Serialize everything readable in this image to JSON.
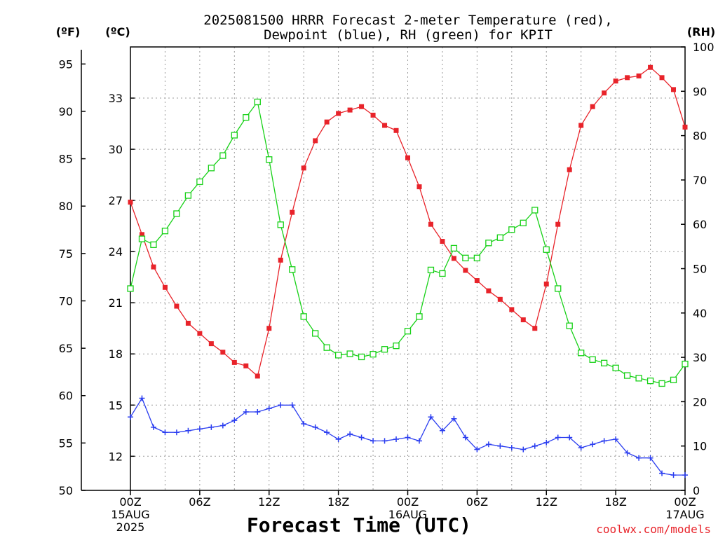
{
  "title_line1": "2025081500 HRRR Forecast 2-meter Temperature (red),",
  "title_line2": "Dewpoint (blue), RH (green) for KPIT",
  "unit_f": "(ºF)",
  "unit_c": "(ºC)",
  "unit_rh": "(RH)",
  "xlabel": "Forecast Time (UTC)",
  "credit": "coolwx.com/models",
  "x_date_labels": [
    {
      "lines": [
        "00Z",
        "15AUG",
        "2025"
      ],
      "hour": 0
    },
    {
      "lines": [
        "00Z",
        "16AUG"
      ],
      "hour": 24
    },
    {
      "lines": [
        "00Z",
        "17AUG"
      ],
      "hour": 48
    }
  ],
  "x_hour_labels": [
    {
      "label": "06Z",
      "hour": 6
    },
    {
      "label": "12Z",
      "hour": 12
    },
    {
      "label": "18Z",
      "hour": 18
    },
    {
      "label": "06Z",
      "hour": 30
    },
    {
      "label": "12Z",
      "hour": 36
    },
    {
      "label": "18Z",
      "hour": 42
    }
  ],
  "colors": {
    "temperature": "#e8232a",
    "dewpoint": "#2a3df0",
    "rh": "#17d117",
    "grid": "#9a9a9a"
  },
  "chart_data": {
    "type": "line",
    "x_unit": "forecast hour from 2025-08-15 00Z",
    "xlim": [
      0,
      48
    ],
    "y_left_f": {
      "ticks": [
        50,
        55,
        60,
        65,
        70,
        75,
        80,
        85,
        90,
        95
      ]
    },
    "y_left_c": {
      "ticks": [
        12,
        15,
        18,
        21,
        24,
        27,
        30,
        33
      ],
      "ylim": [
        10.0,
        36.0
      ]
    },
    "y_right_rh": {
      "ticks": [
        0,
        10,
        20,
        30,
        40,
        50,
        60,
        70,
        80,
        90,
        100
      ],
      "ylim": [
        0,
        100
      ]
    },
    "grid": true,
    "series": [
      {
        "name": "Temperature",
        "axis": "c",
        "marker": "filled-square",
        "x": [
          0,
          1,
          2,
          3,
          4,
          5,
          6,
          7,
          8,
          9,
          10,
          11,
          12,
          13,
          14,
          15,
          16,
          17,
          18,
          19,
          20,
          21,
          22,
          23,
          24,
          25,
          26,
          27,
          28,
          29,
          30,
          31,
          32,
          33,
          34,
          35,
          36,
          37,
          38,
          39,
          40,
          41,
          42,
          43,
          44,
          45,
          46,
          47,
          48
        ],
        "values": [
          26.9,
          25.0,
          23.1,
          21.9,
          20.8,
          19.8,
          19.2,
          18.6,
          18.1,
          17.5,
          17.3,
          16.7,
          19.5,
          23.5,
          26.3,
          28.9,
          30.5,
          31.6,
          32.1,
          32.3,
          32.5,
          32.0,
          31.4,
          31.1,
          29.5,
          27.8,
          25.6,
          24.6,
          23.6,
          22.9,
          22.3,
          21.7,
          21.2,
          20.6,
          20.0,
          19.5,
          22.1,
          25.6,
          28.8,
          31.4,
          32.5,
          33.3,
          34.0,
          34.2,
          34.3,
          34.8,
          34.2,
          33.5,
          31.3
        ]
      },
      {
        "name": "Dewpoint",
        "axis": "c",
        "marker": "plus",
        "x": [
          0,
          1,
          2,
          3,
          4,
          5,
          6,
          7,
          8,
          9,
          10,
          11,
          12,
          13,
          14,
          15,
          16,
          17,
          18,
          19,
          20,
          21,
          22,
          23,
          24,
          25,
          26,
          27,
          28,
          29,
          30,
          31,
          32,
          33,
          34,
          35,
          36,
          37,
          38,
          39,
          40,
          41,
          42,
          43,
          44,
          45,
          46,
          47,
          48
        ],
        "values": [
          14.3,
          15.4,
          13.7,
          13.4,
          13.4,
          13.5,
          13.6,
          13.7,
          13.8,
          14.1,
          14.6,
          14.6,
          14.8,
          15.0,
          15.0,
          13.9,
          13.7,
          13.4,
          13.0,
          13.3,
          13.1,
          12.9,
          12.9,
          13.0,
          13.1,
          12.9,
          14.3,
          13.5,
          14.2,
          13.1,
          12.4,
          12.7,
          12.6,
          12.5,
          12.4,
          12.6,
          12.8,
          13.1,
          13.1,
          12.5,
          12.7,
          12.9,
          13.0,
          12.2,
          11.9,
          11.9,
          11.0,
          10.9,
          10.9
        ]
      },
      {
        "name": "RH",
        "axis": "rh",
        "marker": "open-square",
        "x": [
          0,
          1,
          2,
          3,
          4,
          5,
          6,
          7,
          8,
          9,
          10,
          11,
          12,
          13,
          14,
          15,
          16,
          17,
          18,
          19,
          20,
          21,
          22,
          23,
          24,
          25,
          26,
          27,
          28,
          29,
          30,
          31,
          32,
          33,
          34,
          35,
          36,
          37,
          38,
          39,
          40,
          41,
          42,
          43,
          44,
          45,
          46,
          47,
          48
        ],
        "values": [
          45.5,
          56.7,
          55.4,
          58.5,
          62.4,
          66.5,
          69.6,
          72.7,
          75.5,
          80.1,
          84.1,
          87.6,
          74.6,
          59.9,
          49.8,
          39.2,
          35.4,
          32.2,
          30.5,
          30.8,
          30.1,
          30.7,
          31.8,
          32.6,
          35.9,
          39.2,
          49.7,
          48.9,
          54.6,
          52.4,
          52.4,
          55.8,
          57.0,
          58.8,
          60.3,
          63.2,
          54.3,
          45.5,
          37.1,
          31.0,
          29.5,
          28.7,
          27.6,
          25.9,
          25.3,
          24.7,
          24.1,
          24.9,
          28.5
        ]
      }
    ]
  }
}
